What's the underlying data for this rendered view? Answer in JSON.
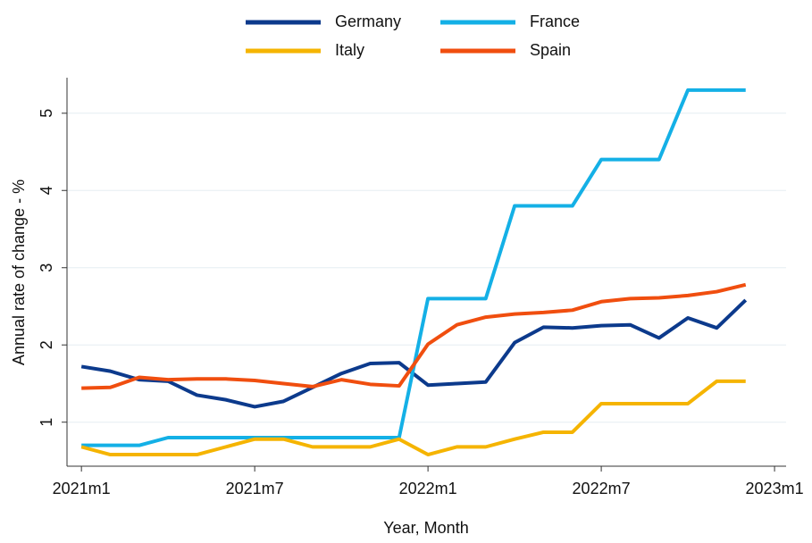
{
  "chart_data": {
    "type": "line",
    "xlabel": "Year, Month",
    "ylabel": "Annual rate of change - %",
    "x": [
      0,
      1,
      2,
      3,
      4,
      5,
      6,
      7,
      8,
      9,
      10,
      11,
      12,
      13,
      14,
      15,
      16,
      17,
      18,
      19,
      20,
      21,
      22,
      23
    ],
    "xlim": [
      -0.5,
      24.4
    ],
    "xticks": [
      {
        "value": 0,
        "label": "2021m1"
      },
      {
        "value": 6,
        "label": "2021m7"
      },
      {
        "value": 12,
        "label": "2022m1"
      },
      {
        "value": 18,
        "label": "2022m7"
      },
      {
        "value": 24,
        "label": "2023m1"
      }
    ],
    "ylim": [
      0.43,
      5.46
    ],
    "yticks": [
      1,
      2,
      3,
      4,
      5
    ],
    "grid": true,
    "series": [
      {
        "name": "Germany",
        "color": "#0c3a8c",
        "values": [
          1.72,
          1.66,
          1.55,
          1.53,
          1.35,
          1.29,
          1.2,
          1.27,
          1.45,
          1.63,
          1.76,
          1.77,
          1.48,
          1.5,
          1.52,
          2.03,
          2.23,
          2.22,
          2.25,
          2.26,
          2.09,
          2.35,
          2.22,
          2.58
        ]
      },
      {
        "name": "France",
        "color": "#14b0e6",
        "values": [
          0.7,
          0.7,
          0.7,
          0.8,
          0.8,
          0.8,
          0.8,
          0.8,
          0.8,
          0.8,
          0.8,
          0.8,
          2.6,
          2.6,
          2.6,
          3.8,
          3.8,
          3.8,
          4.4,
          4.4,
          4.4,
          5.3,
          5.3,
          5.3
        ]
      },
      {
        "name": "Italy",
        "color": "#f5b400",
        "values": [
          0.68,
          0.58,
          0.58,
          0.58,
          0.58,
          0.68,
          0.78,
          0.78,
          0.68,
          0.68,
          0.68,
          0.78,
          0.58,
          0.68,
          0.68,
          0.78,
          0.87,
          0.87,
          1.24,
          1.24,
          1.24,
          1.24,
          1.53,
          1.53
        ]
      },
      {
        "name": "Spain",
        "color": "#f04e0f",
        "values": [
          1.44,
          1.45,
          1.58,
          1.55,
          1.56,
          1.56,
          1.54,
          1.5,
          1.46,
          1.55,
          1.49,
          1.47,
          2.01,
          2.26,
          2.36,
          2.4,
          2.42,
          2.45,
          2.56,
          2.6,
          2.61,
          2.64,
          2.69,
          2.78
        ]
      }
    ]
  }
}
